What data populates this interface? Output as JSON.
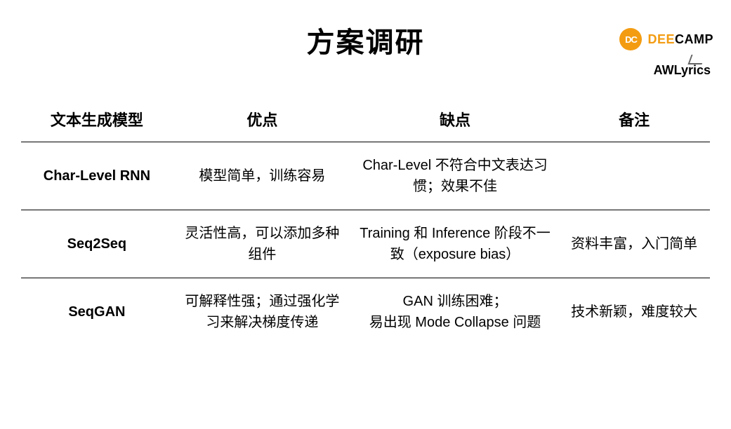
{
  "logos": {
    "deecamp": {
      "icon_text": "DC",
      "text_orange": "DEE",
      "text_black": "CAMP",
      "icon_bg": "#f39c12"
    },
    "awlyrics": "AWLyrics"
  },
  "title": "方案调研",
  "table": {
    "columns": [
      "文本生成模型",
      "优点",
      "缺点",
      "备注"
    ],
    "column_widths_pct": [
      22,
      26,
      30,
      22
    ],
    "rows": [
      {
        "model": "Char-Level RNN",
        "pros": "模型简单，训练容易",
        "cons": "Char-Level 不符合中文表达习惯；效果不佳",
        "notes": ""
      },
      {
        "model": "Seq2Seq",
        "pros": "灵活性高，可以添加多种组件",
        "cons": "Training 和 Inference 阶段不一致（exposure bias）",
        "notes": "资料丰富，入门简单"
      },
      {
        "model": "SeqGAN",
        "pros": "可解释性强；通过强化学习来解决梯度传递",
        "cons": "GAN 训练困难；\n易出现 Mode Collapse 问题",
        "notes": "技术新颖，难度较大"
      }
    ],
    "border_color": "#000000",
    "header_fontsize": 22,
    "cell_fontsize": 20
  },
  "colors": {
    "background": "#ffffff",
    "text": "#000000",
    "accent_orange": "#f39c12"
  }
}
